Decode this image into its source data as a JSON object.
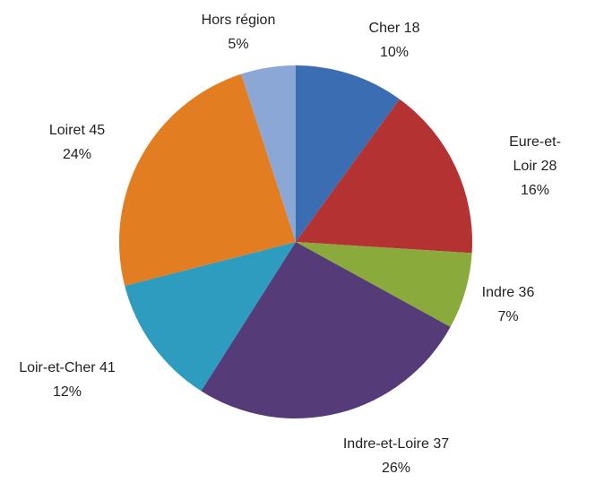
{
  "chart_data": {
    "type": "pie",
    "categories": [
      "Cher 18",
      "Eure-et-Loir 28",
      "Indre 36",
      "Indre-et-Loire 37",
      "Loir-et-Cher 41",
      "Loiret 45",
      "Hors région"
    ],
    "values": [
      10,
      16,
      7,
      26,
      12,
      24,
      5
    ],
    "value_labels": [
      "10%",
      "16%",
      "7%",
      "26%",
      "12%",
      "24%",
      "5%"
    ],
    "colors": [
      "#3b6db3",
      "#b53233",
      "#8aab3b",
      "#553c78",
      "#2e9cbf",
      "#e37d22",
      "#8ba7d6"
    ]
  }
}
